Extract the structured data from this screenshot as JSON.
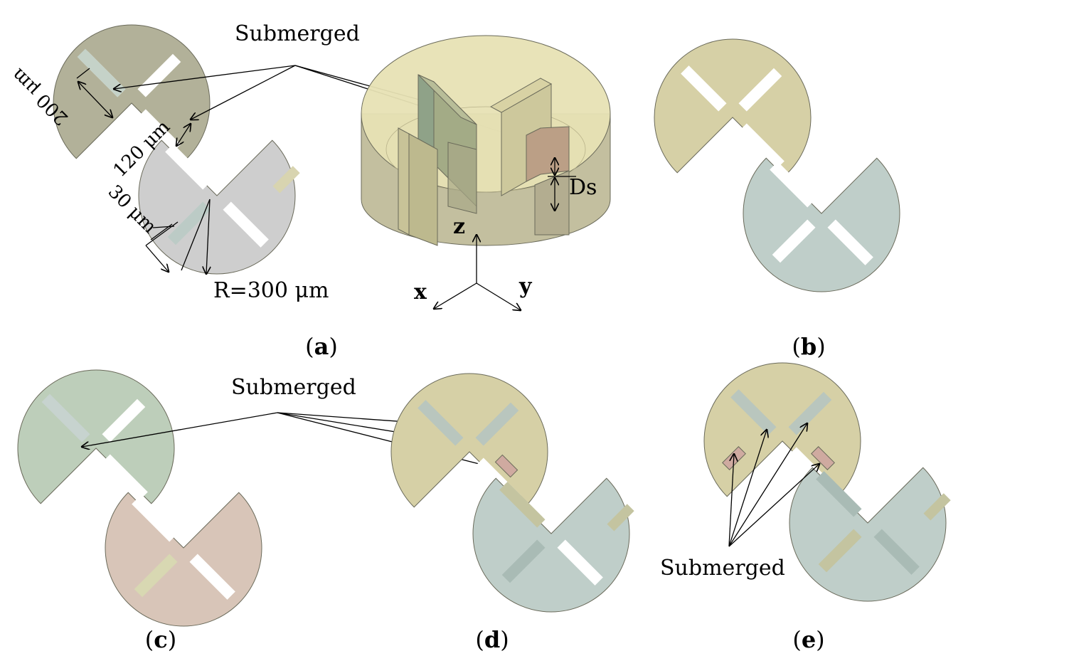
{
  "labels": {
    "submerged": "Submerged",
    "dim_200": "200 μm",
    "dim_120": "120 μm",
    "dim_30": "30 μm",
    "radius": "R=300 μm",
    "ds": "Ds",
    "axis_z": "z",
    "axis_x": "x",
    "axis_y": "y"
  },
  "panels": {
    "a": "a",
    "b": "b",
    "c": "c",
    "d": "d",
    "e": "e"
  },
  "colors": {
    "olive": "#c9c29a",
    "olive_dark": "#a7a58c",
    "grey": "#cfcfcf",
    "teal": "#bccbc6",
    "green": "#b9cbb6",
    "rose": "#d6c2b4",
    "slot_blue": "#a9bbb5",
    "slot_pink": "#c7a79e",
    "slot_tan": "#c4c4a0",
    "cylinder": "#e8e2b8"
  }
}
